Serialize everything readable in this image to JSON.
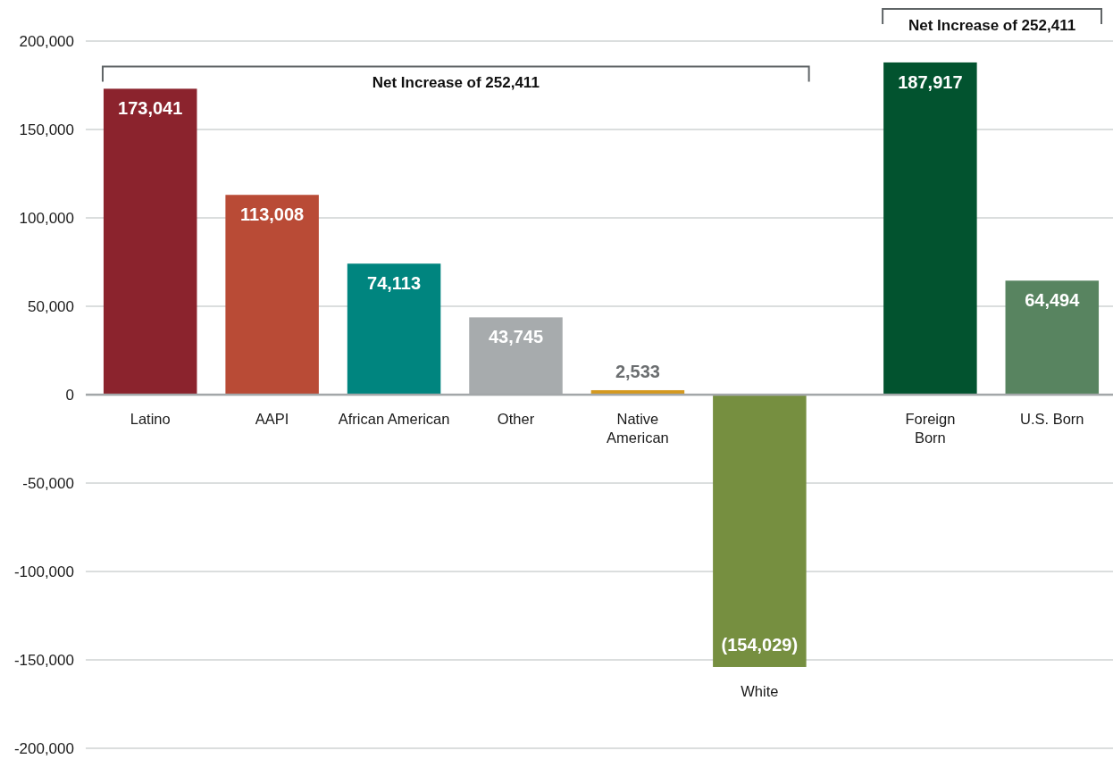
{
  "chart_data": {
    "type": "bar",
    "categories": [
      "Latino",
      "AAPI",
      "African American",
      "Other",
      "Native\nAmerican",
      "White",
      null,
      "Foreign\nBorn",
      "U.S. Born"
    ],
    "values": [
      173041,
      113008,
      74113,
      43745,
      2533,
      -154029,
      null,
      187917,
      64494
    ],
    "colors": [
      "#8b232d",
      "#b94b36",
      "#00857f",
      "#a7abad",
      "#d4991f",
      "#768f40",
      null,
      "#02532f",
      "#588460"
    ],
    "value_labels": [
      "173,041",
      "113,008",
      "74,113",
      "43,745",
      "2,533",
      "(154,029)",
      null,
      "187,917",
      "64,494"
    ],
    "ylim": [
      -200000,
      200000
    ],
    "yticks": [
      {
        "value": -200000,
        "label": "-200,000"
      },
      {
        "value": -150000,
        "label": "-150,000"
      },
      {
        "value": -100000,
        "label": "-100,000"
      },
      {
        "value": -50000,
        "label": "-50,000"
      },
      0,
      {
        "value": 50000,
        "label": "50,000"
      },
      {
        "value": 100000,
        "label": "100,000"
      },
      {
        "value": 150000,
        "label": "150,000"
      },
      {
        "value": 200000,
        "label": "200,000"
      }
    ],
    "grid": "y",
    "annotations": [
      "Net Increase of 252,411",
      "Net Increase of 252,411"
    ]
  }
}
